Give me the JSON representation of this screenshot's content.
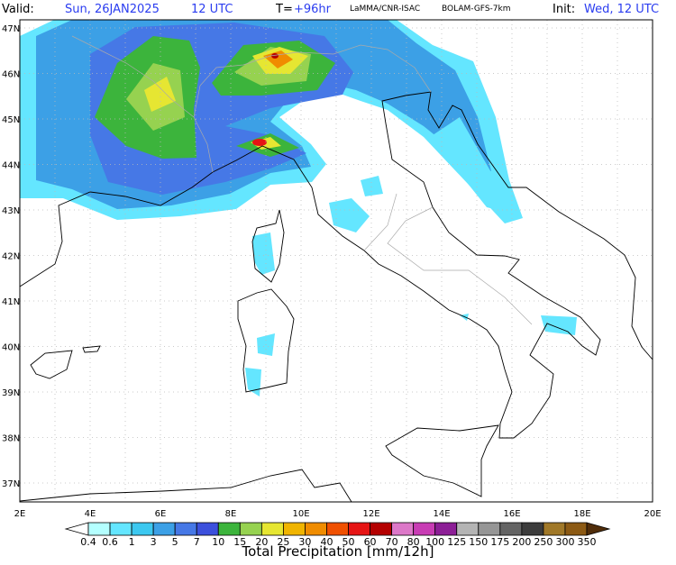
{
  "header": {
    "valid_label": "Valid:",
    "valid_date": "Sun, 26JAN2025",
    "valid_time": "12 UTC",
    "lead_label": "T=",
    "lead": "+96hr",
    "source": "LaMMA/CNR-ISAC",
    "model": "BOLAM-GFS-7km",
    "init_label": "Init:",
    "init": "Wed, 12 UTC"
  },
  "map": {
    "lat_labels": [
      "47N",
      "46N",
      "45N",
      "44N",
      "43N",
      "42N",
      "41N",
      "40N",
      "39N",
      "38N",
      "37N"
    ],
    "lon_labels": [
      "2E",
      "4E",
      "6E",
      "8E",
      "10E",
      "12E",
      "14E",
      "16E",
      "18E",
      "20E"
    ]
  },
  "legend": {
    "title": "Total Precipitation [mm/12h]",
    "labels": [
      "0.4",
      "0.6",
      "1",
      "3",
      "5",
      "7",
      "10",
      "15",
      "20",
      "25",
      "30",
      "40",
      "50",
      "60",
      "70",
      "80",
      "100",
      "125",
      "150",
      "175",
      "200",
      "250",
      "300",
      "350"
    ],
    "colors": [
      "#b4ffff",
      "#64e6ff",
      "#3cc8f0",
      "#3ca0e6",
      "#4678e6",
      "#3c50dc",
      "#3cb43c",
      "#96d250",
      "#e6e632",
      "#f0b400",
      "#f08c00",
      "#f05000",
      "#e61414",
      "#b40000",
      "#dc78c8",
      "#c83cb4",
      "#8c1e96",
      "#b4b4b4",
      "#969696",
      "#646464",
      "#3c3c3c",
      "#a07828",
      "#8c5a14",
      "#6e4614",
      "#502d0a"
    ]
  }
}
